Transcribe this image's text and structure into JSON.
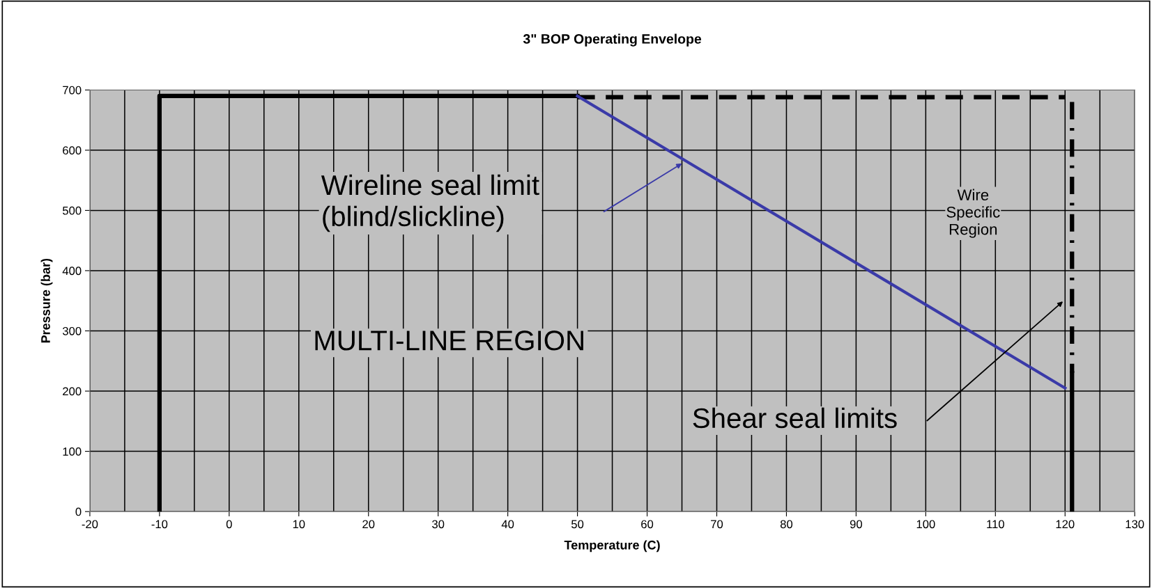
{
  "chart_data": {
    "type": "line",
    "title": "3\" BOP Operating Envelope",
    "xlabel": "Temperature (C)",
    "ylabel": "Pressure (bar)",
    "series": [
      {
        "x": [
          -10,
          -10,
          50
        ],
        "values": [
          0,
          690,
          690
        ],
        "color": "#000000",
        "line_style": "solid"
      },
      {
        "x": [
          50,
          120
        ],
        "values": [
          688,
          688
        ],
        "color": "#000000",
        "line_style": "dashed"
      },
      {
        "x": [
          121,
          121
        ],
        "values": [
          680,
          230
        ],
        "color": "#000000",
        "line_style": "dashdot"
      },
      {
        "x": [
          121,
          121
        ],
        "values": [
          230,
          0
        ],
        "color": "#000000",
        "line_style": "solid"
      },
      {
        "x": [
          50,
          120
        ],
        "values": [
          690,
          205
        ],
        "color": "#3a3aa8",
        "line_style": "solid"
      }
    ],
    "annotations": [
      "Wireline seal limit\n(blind/slickline)",
      "MULTI-LINE REGION",
      "Wire\nSpecific\nRegion",
      "Shear seal limits"
    ],
    "xlim": [
      -20,
      130
    ],
    "ylim": [
      0,
      700
    ],
    "xticks": [
      -20,
      {
        "value": -15,
        "label": null
      },
      -10,
      {
        "value": -5,
        "label": null
      },
      0,
      {
        "value": 5,
        "label": null
      },
      10,
      {
        "value": 15,
        "label": null
      },
      20,
      {
        "value": 25,
        "label": null
      },
      30,
      {
        "value": 35,
        "label": null
      },
      40,
      {
        "value": 45,
        "label": null
      },
      50,
      {
        "value": 55,
        "label": null
      },
      60,
      {
        "value": 65,
        "label": null
      },
      70,
      {
        "value": 75,
        "label": null
      },
      80,
      {
        "value": 85,
        "label": null
      },
      90,
      {
        "value": 95,
        "label": null
      },
      100,
      {
        "value": 105,
        "label": null
      },
      110,
      {
        "value": 115,
        "label": null
      },
      120,
      {
        "value": 125,
        "label": null
      },
      130
    ],
    "yticks": [
      0,
      100,
      200,
      300,
      400,
      500,
      600,
      700
    ],
    "grid": true,
    "marker": "none"
  }
}
